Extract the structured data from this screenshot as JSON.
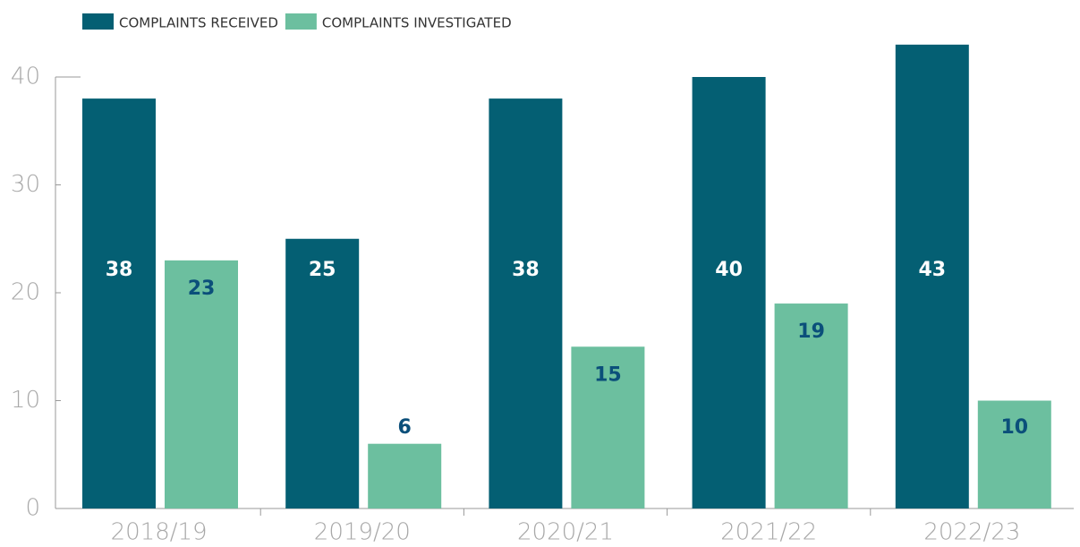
{
  "chart_data": {
    "type": "bar",
    "categories": [
      "2018/19",
      "2019/20",
      "2020/21",
      "2021/22",
      "2022/23"
    ],
    "series": [
      {
        "name": "COMPLAINTS RECEIVED",
        "color": "#045f73",
        "values": [
          38,
          25,
          38,
          40,
          43
        ]
      },
      {
        "name": "COMPLAINTS INVESTIGATED",
        "color": "#6cbf9f",
        "values": [
          23,
          6,
          15,
          19,
          10
        ]
      }
    ],
    "ylim": [
      0,
      40
    ],
    "yticks": [
      0,
      10,
      20,
      30,
      40
    ]
  }
}
